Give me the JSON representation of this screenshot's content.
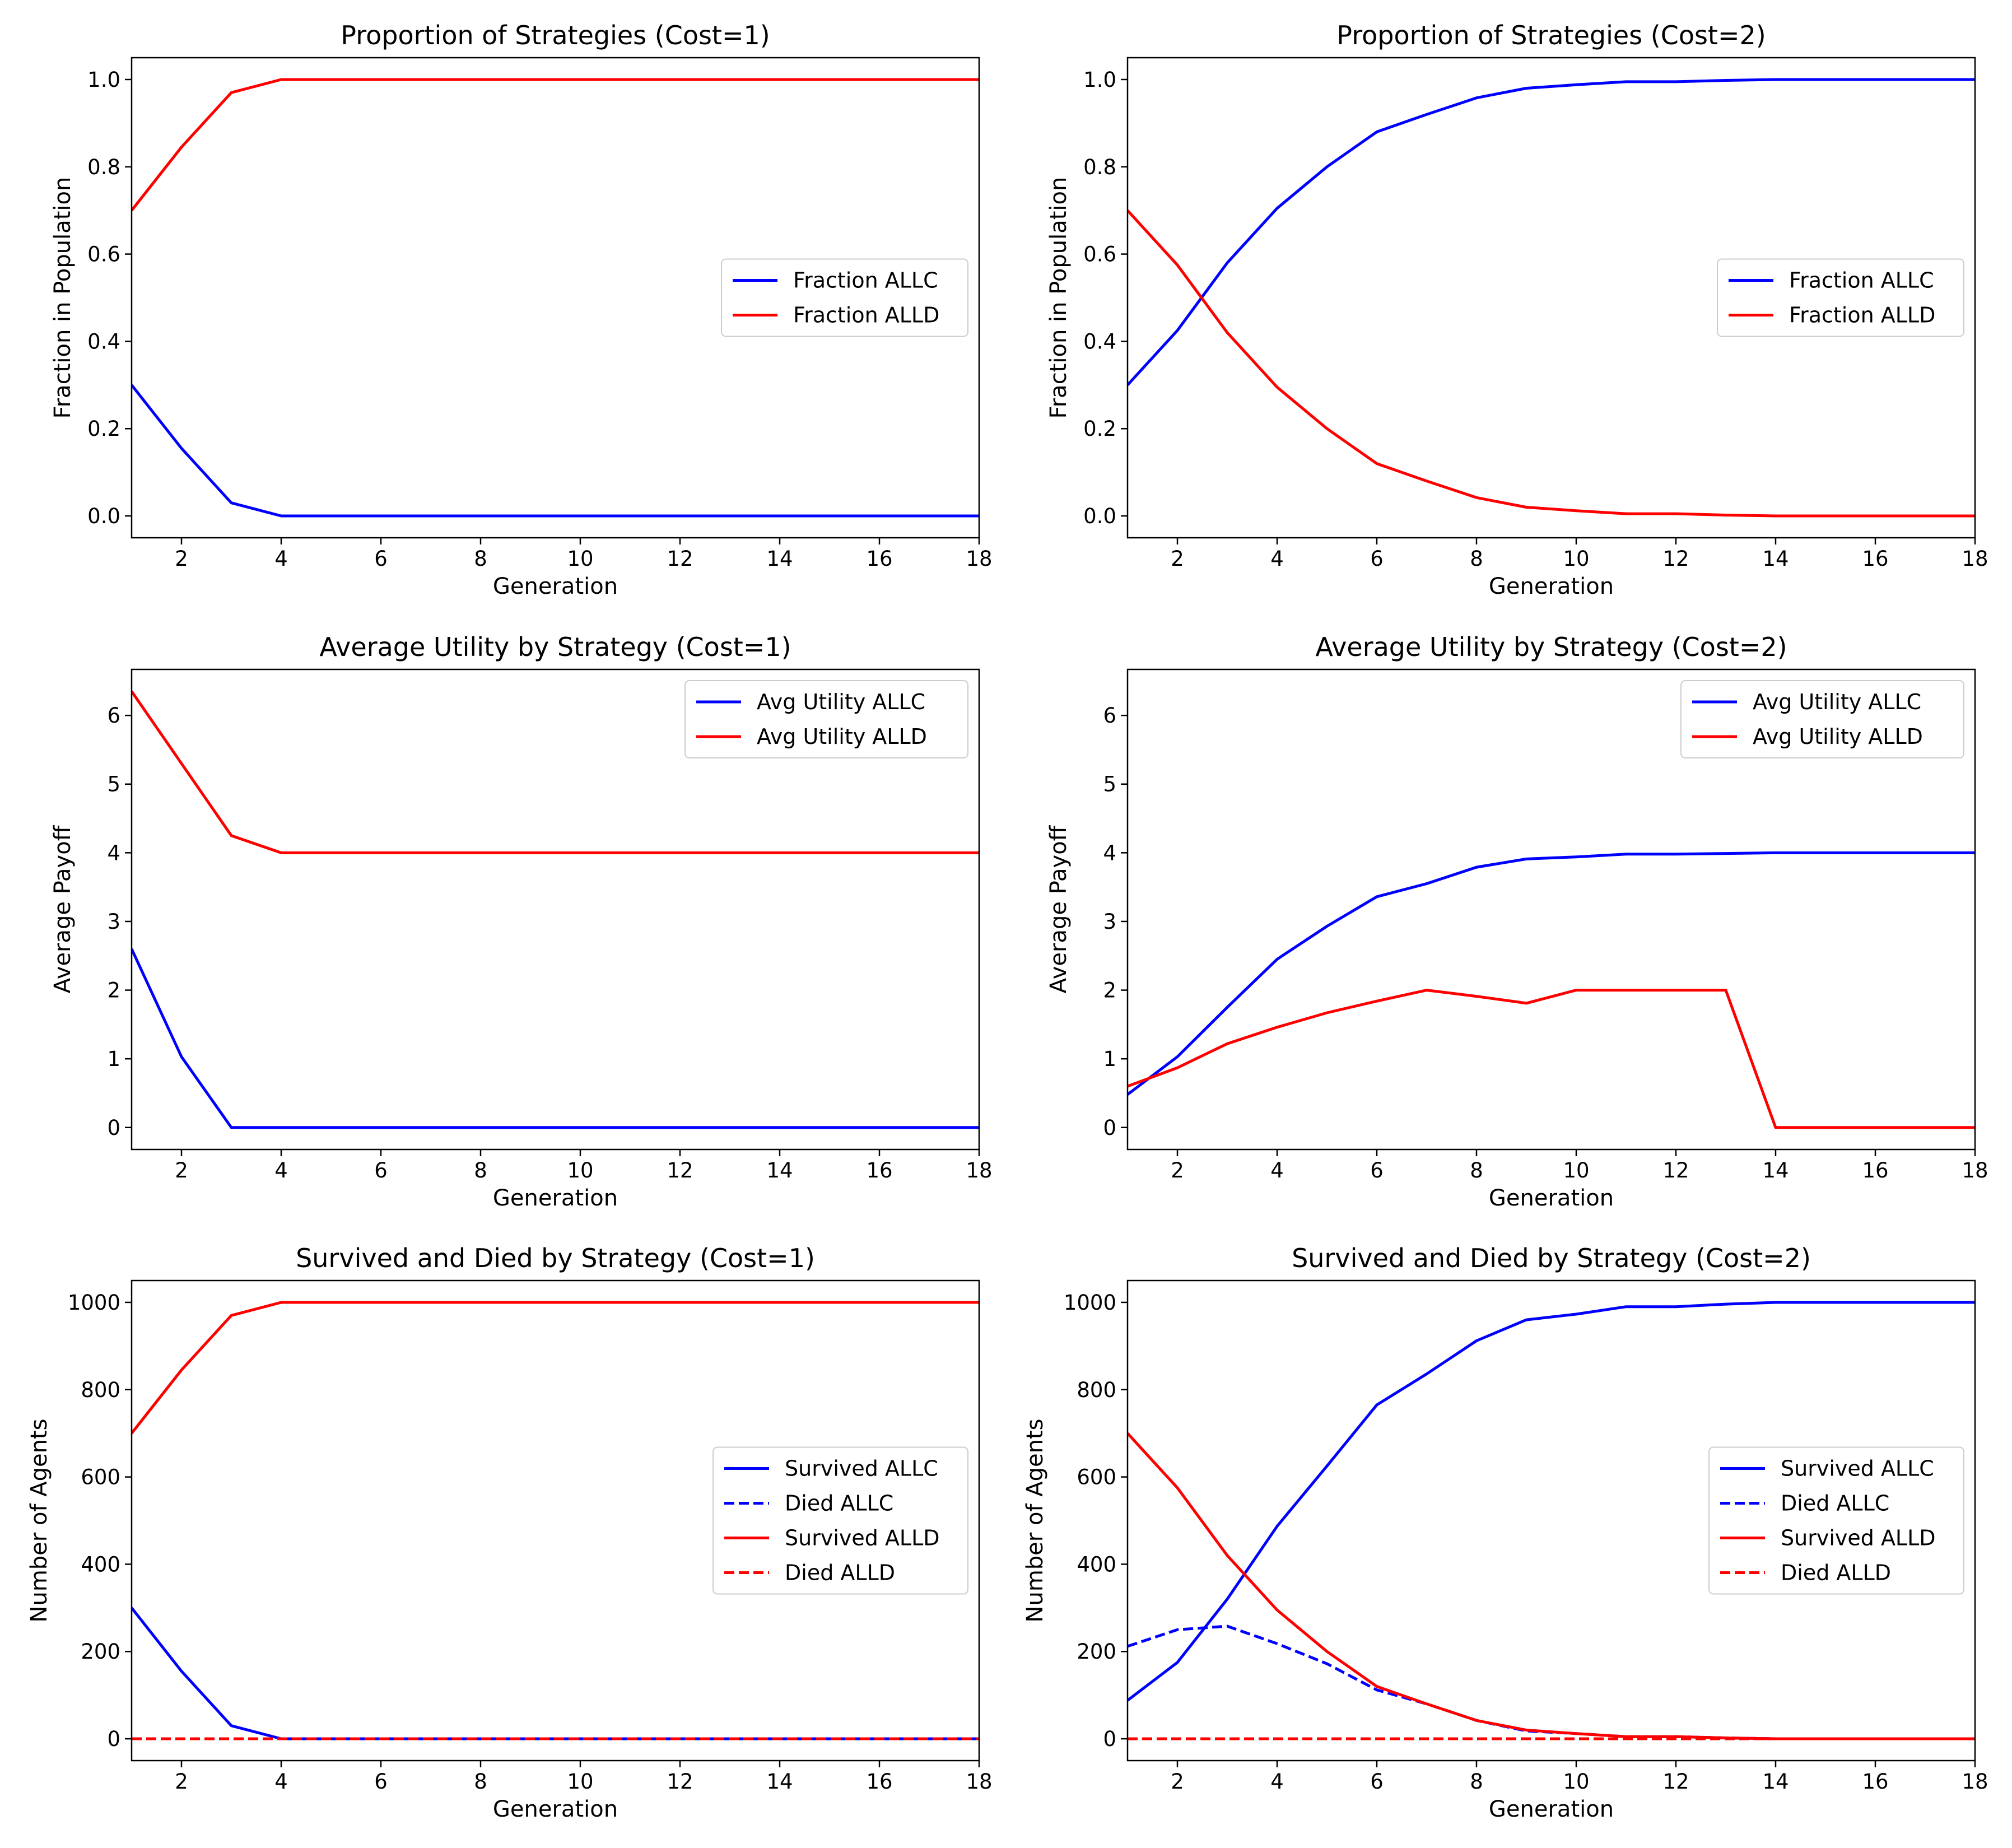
{
  "chart_data": [
    {
      "type": "line",
      "title": "Proportion of Strategies (Cost=1)",
      "xlabel": "Generation",
      "ylabel": "Fraction in Population",
      "xlim": [
        1,
        18
      ],
      "ylim": [
        -0.05,
        1.05
      ],
      "xticks": [
        "2",
        "4",
        "6",
        "8",
        "10",
        "12",
        "14",
        "16",
        "18"
      ],
      "yticks": [
        "0.0",
        "0.2",
        "0.4",
        "0.6",
        "0.8",
        "1.0"
      ],
      "legend_position": "center-right",
      "x": [
        1,
        2,
        3,
        4,
        5,
        6,
        7,
        8,
        9,
        10,
        11,
        12,
        13,
        14,
        15,
        16,
        17,
        18
      ],
      "series": [
        {
          "name": "Fraction ALLC",
          "color": "#0000ff",
          "dash": "solid",
          "values": [
            0.3,
            0.155,
            0.03,
            0.0,
            0.0,
            0.0,
            0.0,
            0.0,
            0.0,
            0.0,
            0.0,
            0.0,
            0.0,
            0.0,
            0.0,
            0.0,
            0.0,
            0.0
          ]
        },
        {
          "name": "Fraction ALLD",
          "color": "#ff0000",
          "dash": "solid",
          "values": [
            0.7,
            0.845,
            0.97,
            1.0,
            1.0,
            1.0,
            1.0,
            1.0,
            1.0,
            1.0,
            1.0,
            1.0,
            1.0,
            1.0,
            1.0,
            1.0,
            1.0,
            1.0
          ]
        }
      ]
    },
    {
      "type": "line",
      "title": "Proportion of Strategies (Cost=2)",
      "xlabel": "Generation",
      "ylabel": "Fraction in Population",
      "xlim": [
        1,
        18
      ],
      "ylim": [
        -0.05,
        1.05
      ],
      "xticks": [
        "2",
        "4",
        "6",
        "8",
        "10",
        "12",
        "14",
        "16",
        "18"
      ],
      "yticks": [
        "0.0",
        "0.2",
        "0.4",
        "0.6",
        "0.8",
        "1.0"
      ],
      "legend_position": "center-right",
      "x": [
        1,
        2,
        3,
        4,
        5,
        6,
        7,
        8,
        9,
        10,
        11,
        12,
        13,
        14,
        15,
        16,
        17,
        18
      ],
      "series": [
        {
          "name": "Fraction ALLC",
          "color": "#0000ff",
          "dash": "solid",
          "values": [
            0.3,
            0.425,
            0.58,
            0.705,
            0.8,
            0.88,
            0.92,
            0.958,
            0.98,
            0.988,
            0.995,
            0.995,
            0.998,
            1.0,
            1.0,
            1.0,
            1.0,
            1.0
          ]
        },
        {
          "name": "Fraction ALLD",
          "color": "#ff0000",
          "dash": "solid",
          "values": [
            0.7,
            0.575,
            0.42,
            0.295,
            0.2,
            0.12,
            0.08,
            0.042,
            0.02,
            0.012,
            0.005,
            0.005,
            0.002,
            0.0,
            0.0,
            0.0,
            0.0,
            0.0
          ]
        }
      ]
    },
    {
      "type": "line",
      "title": "Average Utility by Strategy (Cost=1)",
      "xlabel": "Generation",
      "ylabel": "Average Payoff",
      "xlim": [
        1,
        18
      ],
      "ylim": [
        -0.32,
        6.67
      ],
      "xticks": [
        "2",
        "4",
        "6",
        "8",
        "10",
        "12",
        "14",
        "16",
        "18"
      ],
      "yticks": [
        "0",
        "1",
        "2",
        "3",
        "4",
        "5",
        "6"
      ],
      "legend_position": "top-right",
      "x": [
        1,
        2,
        3,
        4,
        5,
        6,
        7,
        8,
        9,
        10,
        11,
        12,
        13,
        14,
        15,
        16,
        17,
        18
      ],
      "series": [
        {
          "name": "Avg Utility ALLC",
          "color": "#0000ff",
          "dash": "solid",
          "values": [
            2.6,
            1.03,
            0.0,
            0.0,
            0.0,
            0.0,
            0.0,
            0.0,
            0.0,
            0.0,
            0.0,
            0.0,
            0.0,
            0.0,
            0.0,
            0.0,
            0.0,
            0.0
          ]
        },
        {
          "name": "Avg Utility ALLD",
          "color": "#ff0000",
          "dash": "solid",
          "values": [
            6.35,
            5.3,
            4.25,
            4.0,
            4.0,
            4.0,
            4.0,
            4.0,
            4.0,
            4.0,
            4.0,
            4.0,
            4.0,
            4.0,
            4.0,
            4.0,
            4.0,
            4.0
          ]
        }
      ]
    },
    {
      "type": "line",
      "title": "Average Utility by Strategy (Cost=2)",
      "xlabel": "Generation",
      "ylabel": "Average Payoff",
      "xlim": [
        1,
        18
      ],
      "ylim": [
        -0.32,
        6.67
      ],
      "xticks": [
        "2",
        "4",
        "6",
        "8",
        "10",
        "12",
        "14",
        "16",
        "18"
      ],
      "yticks": [
        "0",
        "1",
        "2",
        "3",
        "4",
        "5",
        "6"
      ],
      "legend_position": "top-right",
      "x": [
        1,
        2,
        3,
        4,
        5,
        6,
        7,
        8,
        9,
        10,
        11,
        12,
        13,
        14,
        15,
        16,
        17,
        18
      ],
      "series": [
        {
          "name": "Avg Utility ALLC",
          "color": "#0000ff",
          "dash": "solid",
          "values": [
            0.48,
            1.03,
            1.75,
            2.45,
            2.93,
            3.36,
            3.55,
            3.79,
            3.91,
            3.94,
            3.98,
            3.98,
            3.99,
            4.0,
            4.0,
            4.0,
            4.0,
            4.0
          ]
        },
        {
          "name": "Avg Utility ALLD",
          "color": "#ff0000",
          "dash": "solid",
          "values": [
            0.6,
            0.87,
            1.22,
            1.46,
            1.67,
            1.84,
            2.0,
            1.91,
            1.81,
            2.0,
            2.0,
            2.0,
            2.0,
            0.0,
            0.0,
            0.0,
            0.0,
            0.0
          ]
        }
      ]
    },
    {
      "type": "line",
      "title": "Survived and Died by Strategy (Cost=1)",
      "xlabel": "Generation",
      "ylabel": "Number of Agents",
      "xlim": [
        1,
        18
      ],
      "ylim": [
        -50,
        1050
      ],
      "xticks": [
        "2",
        "4",
        "6",
        "8",
        "10",
        "12",
        "14",
        "16",
        "18"
      ],
      "yticks": [
        "0",
        "200",
        "400",
        "600",
        "800",
        "1000"
      ],
      "legend_position": "center-right",
      "x": [
        1,
        2,
        3,
        4,
        5,
        6,
        7,
        8,
        9,
        10,
        11,
        12,
        13,
        14,
        15,
        16,
        17,
        18
      ],
      "series": [
        {
          "name": "Survived ALLC",
          "color": "#0000ff",
          "dash": "solid",
          "values": [
            300,
            155,
            30,
            0,
            0,
            0,
            0,
            0,
            0,
            0,
            0,
            0,
            0,
            0,
            0,
            0,
            0,
            0
          ]
        },
        {
          "name": "Died ALLC",
          "color": "#0000ff",
          "dash": "dashed",
          "values": [
            0,
            0,
            0,
            0,
            0,
            0,
            0,
            0,
            0,
            0,
            0,
            0,
            0,
            0,
            0,
            0,
            0,
            0
          ]
        },
        {
          "name": "Survived ALLD",
          "color": "#ff0000",
          "dash": "solid",
          "values": [
            700,
            845,
            970,
            1000,
            1000,
            1000,
            1000,
            1000,
            1000,
            1000,
            1000,
            1000,
            1000,
            1000,
            1000,
            1000,
            1000,
            1000
          ]
        },
        {
          "name": "Died ALLD",
          "color": "#ff0000",
          "dash": "dashed",
          "values": [
            0,
            0,
            0,
            0,
            0,
            0,
            0,
            0,
            0,
            0,
            0,
            0,
            0,
            0,
            0,
            0,
            0,
            0
          ]
        }
      ]
    },
    {
      "type": "line",
      "title": "Survived and Died by Strategy (Cost=2)",
      "xlabel": "Generation",
      "ylabel": "Number of Agents",
      "xlim": [
        1,
        18
      ],
      "ylim": [
        -50,
        1050
      ],
      "xticks": [
        "2",
        "4",
        "6",
        "8",
        "10",
        "12",
        "14",
        "16",
        "18"
      ],
      "yticks": [
        "0",
        "200",
        "400",
        "600",
        "800",
        "1000"
      ],
      "legend_position": "center-right",
      "x": [
        1,
        2,
        3,
        4,
        5,
        6,
        7,
        8,
        9,
        10,
        11,
        12,
        13,
        14,
        15,
        16,
        17,
        18
      ],
      "series": [
        {
          "name": "Survived ALLC",
          "color": "#0000ff",
          "dash": "solid",
          "values": [
            88,
            175,
            320,
            487,
            625,
            765,
            836,
            912,
            960,
            973,
            990,
            990,
            996,
            1000,
            1000,
            1000,
            1000,
            1000
          ]
        },
        {
          "name": "Died ALLC",
          "color": "#0000ff",
          "dash": "dashed",
          "values": [
            212,
            250,
            258,
            218,
            172,
            112,
            80,
            42,
            18,
            12,
            5,
            5,
            2,
            0,
            0,
            0,
            0,
            0
          ]
        },
        {
          "name": "Survived ALLD",
          "color": "#ff0000",
          "dash": "solid",
          "values": [
            700,
            575,
            420,
            295,
            200,
            120,
            80,
            42,
            20,
            12,
            5,
            5,
            2,
            0,
            0,
            0,
            0,
            0
          ]
        },
        {
          "name": "Died ALLD",
          "color": "#ff0000",
          "dash": "dashed",
          "values": [
            0,
            0,
            0,
            0,
            0,
            0,
            0,
            0,
            0,
            0,
            0,
            0,
            0,
            0,
            0,
            0,
            0,
            0
          ]
        }
      ]
    }
  ]
}
